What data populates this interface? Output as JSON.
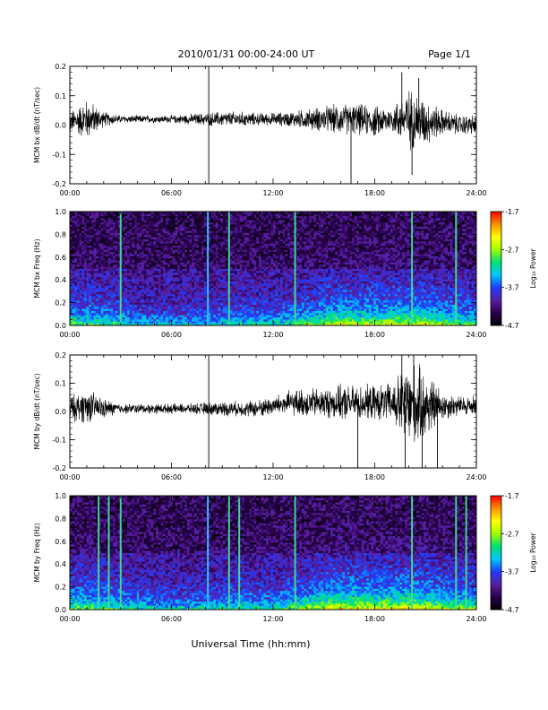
{
  "header": {
    "title": "2010/01/31  00:00-24:00 UT",
    "page": "Page 1/1"
  },
  "footer": {
    "xlabel": "Universal Time (hh:mm)"
  },
  "colorbar": {
    "label": "Log₁₀ Power",
    "ticks": [
      "-1.7",
      "-2.7",
      "-3.7",
      "-4.7"
    ],
    "range": [
      -4.7,
      -1.7
    ],
    "colormap": [
      "#000000",
      "#2a0050",
      "#5a1fa0",
      "#1e3cff",
      "#00c8ff",
      "#00e070",
      "#a0ff00",
      "#ffff00",
      "#ff9000",
      "#ff0000"
    ]
  },
  "chart_data": [
    {
      "type": "line",
      "id": "bx-ts",
      "ylabel": "MCM bx dB/dt (nT/sec)",
      "ylim": [
        -0.2,
        0.2
      ],
      "yticks": [
        "0.2",
        "0.1",
        "0.0",
        "-0.1",
        "-0.2"
      ],
      "xlim": [
        "00:00",
        "24:00"
      ],
      "xticks": [
        "00:00",
        "06:00",
        "12:00",
        "18:00",
        "24:00"
      ],
      "series": [
        {
          "x_hours": [
            0,
            1,
            2,
            3,
            4,
            5,
            6,
            7,
            8,
            9,
            10,
            11,
            12,
            13,
            14,
            15,
            16,
            17,
            18,
            19,
            20,
            21,
            22,
            23,
            24
          ],
          "offset": [
            0.01,
            0.02,
            0.02,
            0.02,
            0.02,
            0.02,
            0.02,
            0.02,
            0.02,
            0.02,
            0.02,
            0.02,
            0.02,
            0.02,
            0.02,
            0.02,
            0.02,
            0.02,
            0.01,
            0.02,
            0.02,
            0.01,
            0.01,
            0.0,
            0.0
          ],
          "amplitude": [
            0.04,
            0.08,
            0.03,
            0.015,
            0.015,
            0.015,
            0.015,
            0.02,
            0.025,
            0.03,
            0.03,
            0.025,
            0.025,
            0.03,
            0.04,
            0.05,
            0.06,
            0.06,
            0.06,
            0.05,
            0.12,
            0.09,
            0.05,
            0.04,
            0.04
          ],
          "spikes": [
            {
              "x": 8.2,
              "y": 0.2
            },
            {
              "x": 8.2,
              "y": -0.2
            },
            {
              "x": 16.6,
              "y": -0.2
            },
            {
              "x": 19.6,
              "y": 0.18
            },
            {
              "x": 20.2,
              "y": -0.17
            },
            {
              "x": 20.6,
              "y": 0.16
            }
          ]
        }
      ]
    },
    {
      "type": "heatmap",
      "id": "bx-spec",
      "ylabel": "MCM bx Freq (Hz)",
      "ylim": [
        0.0,
        1.0
      ],
      "yticks": [
        "1.0",
        "0.8",
        "0.6",
        "0.4",
        "0.2",
        "0.0"
      ],
      "xlim": [
        "00:00",
        "24:00"
      ],
      "xticks": [
        "00:00",
        "06:00",
        "12:00",
        "18:00",
        "24:00"
      ],
      "zlim": [
        -4.7,
        -1.7
      ],
      "activity_hours": [
        0,
        2,
        4,
        6,
        8,
        10,
        12,
        14,
        16,
        18,
        20,
        22,
        24
      ],
      "activity": [
        0.55,
        0.5,
        0.3,
        0.25,
        0.3,
        0.35,
        0.35,
        0.55,
        0.75,
        0.7,
        0.8,
        0.65,
        0.5
      ],
      "impulse_lines_hours": [
        3.0,
        8.15,
        9.4,
        13.3,
        20.2,
        22.8
      ]
    },
    {
      "type": "line",
      "id": "by-ts",
      "ylabel": "MCM by dB/dt (nT/sec)",
      "ylim": [
        -0.2,
        0.2
      ],
      "yticks": [
        "0.2",
        "0.1",
        "0.0",
        "-0.1",
        "-0.2"
      ],
      "xlim": [
        "00:00",
        "24:00"
      ],
      "xticks": [
        "00:00",
        "06:00",
        "12:00",
        "18:00",
        "24:00"
      ],
      "series": [
        {
          "x_hours": [
            0,
            1,
            2,
            3,
            4,
            5,
            6,
            7,
            8,
            9,
            10,
            11,
            12,
            13,
            14,
            15,
            16,
            17,
            18,
            19,
            20,
            21,
            22,
            23,
            24
          ],
          "offset": [
            0.01,
            0.02,
            0.01,
            0.01,
            0.01,
            0.01,
            0.01,
            0.01,
            0.01,
            0.01,
            0.01,
            0.01,
            0.02,
            0.03,
            0.03,
            0.03,
            0.03,
            0.03,
            0.03,
            0.03,
            0.02,
            0.02,
            0.02,
            0.02,
            0.02
          ],
          "amplitude": [
            0.05,
            0.07,
            0.04,
            0.02,
            0.02,
            0.02,
            0.02,
            0.02,
            0.025,
            0.03,
            0.03,
            0.035,
            0.04,
            0.05,
            0.06,
            0.06,
            0.07,
            0.07,
            0.07,
            0.08,
            0.18,
            0.14,
            0.06,
            0.04,
            0.04
          ],
          "spikes": [
            {
              "x": 8.2,
              "y": 0.2
            },
            {
              "x": 8.2,
              "y": -0.2
            },
            {
              "x": 17.0,
              "y": -0.2
            },
            {
              "x": 19.6,
              "y": 0.2
            },
            {
              "x": 19.8,
              "y": -0.2
            },
            {
              "x": 20.3,
              "y": 0.2
            },
            {
              "x": 20.8,
              "y": -0.2
            },
            {
              "x": 21.7,
              "y": -0.2
            }
          ]
        }
      ]
    },
    {
      "type": "heatmap",
      "id": "by-spec",
      "ylabel": "MCM by Freq (Hz)",
      "ylim": [
        0.0,
        1.0
      ],
      "yticks": [
        "1.0",
        "0.8",
        "0.6",
        "0.4",
        "0.2",
        "0.0"
      ],
      "xlim": [
        "00:00",
        "24:00"
      ],
      "xticks": [
        "00:00",
        "06:00",
        "12:00",
        "18:00",
        "24:00"
      ],
      "zlim": [
        -4.7,
        -1.7
      ],
      "activity_hours": [
        0,
        2,
        4,
        6,
        8,
        10,
        12,
        14,
        16,
        18,
        20,
        22,
        24
      ],
      "activity": [
        0.6,
        0.55,
        0.35,
        0.3,
        0.35,
        0.4,
        0.4,
        0.65,
        0.85,
        0.8,
        0.85,
        0.7,
        0.55
      ],
      "impulse_lines_hours": [
        1.7,
        2.3,
        3.0,
        8.15,
        9.4,
        10.0,
        13.3,
        20.2,
        22.8,
        23.4
      ]
    }
  ]
}
